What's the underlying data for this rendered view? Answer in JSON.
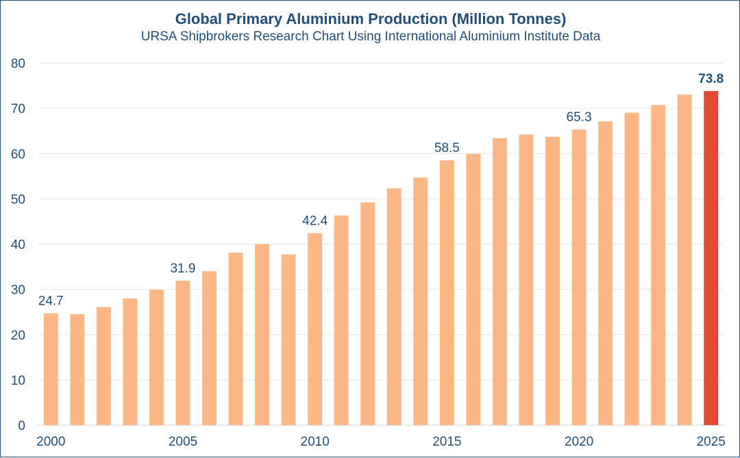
{
  "chart_data": {
    "type": "bar",
    "title": "Global Primary Aluminium Production (Million Tonnes)",
    "subtitle": "URSA Shipbrokers Research Chart Using International Aluminium Institute Data",
    "xlabel": "",
    "ylabel": "",
    "categories": [
      "2000",
      "2001",
      "2002",
      "2003",
      "2004",
      "2005",
      "2006",
      "2007",
      "2008",
      "2009",
      "2010",
      "2011",
      "2012",
      "2013",
      "2014",
      "2015",
      "2016",
      "2017",
      "2018",
      "2019",
      "2020",
      "2021",
      "2022",
      "2023",
      "2024",
      "2025"
    ],
    "values": [
      24.7,
      24.5,
      26.1,
      28.0,
      29.9,
      31.9,
      34.0,
      38.1,
      40.0,
      37.7,
      42.4,
      46.3,
      49.2,
      52.3,
      54.7,
      58.5,
      59.9,
      63.4,
      64.2,
      63.7,
      65.3,
      67.1,
      69.0,
      70.7,
      73.0,
      73.8
    ],
    "x_tick_labels": [
      "2000",
      "2005",
      "2010",
      "2015",
      "2020",
      "2025"
    ],
    "y_ticks": [
      0,
      10,
      20,
      30,
      40,
      50,
      60,
      70,
      80
    ],
    "ylim": [
      0,
      80
    ],
    "grid": true,
    "data_labels": [
      {
        "category": "2000",
        "text": "24.7"
      },
      {
        "category": "2005",
        "text": "31.9"
      },
      {
        "category": "2010",
        "text": "42.4"
      },
      {
        "category": "2015",
        "text": "58.5"
      },
      {
        "category": "2020",
        "text": "65.3"
      },
      {
        "category": "2025",
        "text": "73.8",
        "highlight": true
      }
    ],
    "highlight_category": "2025",
    "colors": {
      "bar": "#fbb886",
      "highlight_bar": "#e34a33",
      "text": "#1f4e79",
      "grid": "#e6e6e6"
    }
  }
}
